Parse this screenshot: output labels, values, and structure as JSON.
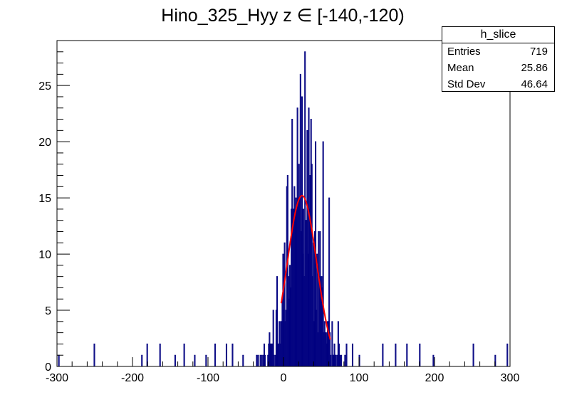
{
  "chart_data": {
    "type": "histogram",
    "title": "Hino_325_Hyy z  ∈ [-140,-120)",
    "xlabel": "",
    "ylabel": "",
    "xlim": [
      -300,
      300
    ],
    "ylim": [
      0,
      29
    ],
    "x_ticks": [
      -300,
      -200,
      -100,
      0,
      100,
      200,
      300
    ],
    "y_ticks": [
      0,
      5,
      10,
      15,
      20,
      25
    ],
    "bin_width": 1,
    "grid": false,
    "colors": {
      "histogram": "#000080",
      "fit": "#ff0000",
      "frame": "#000000"
    },
    "histogram": {
      "name": "h_slice",
      "outlier_bins": [
        {
          "x": -298,
          "y": 1
        },
        {
          "x": -251,
          "y": 2
        },
        {
          "x": -188,
          "y": 1
        },
        {
          "x": -181,
          "y": 2
        },
        {
          "x": -164,
          "y": 2
        },
        {
          "x": -144,
          "y": 1
        },
        {
          "x": -132,
          "y": 2
        },
        {
          "x": -118,
          "y": 1
        },
        {
          "x": -103,
          "y": 1
        },
        {
          "x": -91,
          "y": 2
        },
        {
          "x": -76,
          "y": 2
        },
        {
          "x": -68,
          "y": 2
        },
        {
          "x": 131,
          "y": 2
        },
        {
          "x": 148,
          "y": 2
        },
        {
          "x": 163,
          "y": 2
        },
        {
          "x": 180,
          "y": 2
        },
        {
          "x": 198,
          "y": 1
        },
        {
          "x": 251,
          "y": 2
        },
        {
          "x": 280,
          "y": 1
        },
        {
          "x": 296,
          "y": 2
        }
      ],
      "peak_bins": [
        {
          "x": 5,
          "y": 17
        },
        {
          "x": 11,
          "y": 22
        },
        {
          "x": 18,
          "y": 23
        },
        {
          "x": 22,
          "y": 26
        },
        {
          "x": 24,
          "y": 24
        },
        {
          "x": 28,
          "y": 28
        },
        {
          "x": 33,
          "y": 23
        },
        {
          "x": 36,
          "y": 22
        },
        {
          "x": 42,
          "y": 20
        },
        {
          "x": 52,
          "y": 20
        },
        {
          "x": 60,
          "y": 15
        }
      ]
    },
    "fit": {
      "type": "gaussian",
      "constant": 15.2,
      "mean": 24.5,
      "sigma": 19.5,
      "range": [
        -3,
        62
      ]
    },
    "stats": {
      "title": "h_slice",
      "rows": [
        {
          "label": "Entries",
          "value": "719"
        },
        {
          "label": "Mean",
          "value": "25.86"
        },
        {
          "label": "Std Dev",
          "value": "46.64"
        }
      ]
    }
  }
}
